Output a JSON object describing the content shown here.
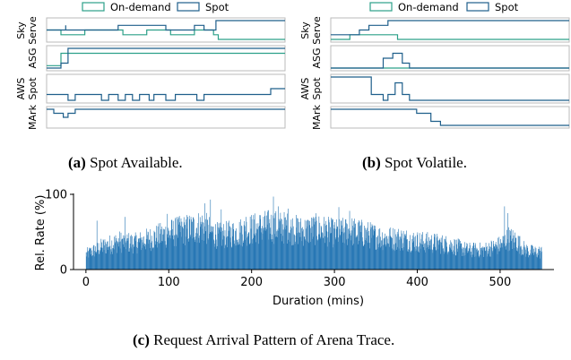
{
  "colors": {
    "on_demand": "#2ca089",
    "spot": "#1f5f8b",
    "bars": "#2978b5"
  },
  "panel_a": {
    "caption_letter": "(a)",
    "caption_text": "Spot Available.",
    "legend": [
      "On-demand",
      "Spot"
    ],
    "row_labels": [
      [
        "Sky",
        "Serve"
      ],
      [
        "ASG"
      ],
      [
        "AWS",
        "Spot"
      ],
      [
        "MArk"
      ]
    ]
  },
  "panel_b": {
    "caption_letter": "(b)",
    "caption_text": "Spot Volatile.",
    "legend": [
      "On-demand",
      "Spot"
    ],
    "row_labels": [
      [
        "Sky",
        "Serve"
      ],
      [
        "ASG"
      ],
      [
        "AWS",
        "Spot"
      ],
      [
        "MArk"
      ]
    ]
  },
  "panel_c": {
    "caption_letter": "(c)",
    "caption_text": "Request Arrival Pattern of Arena Trace."
  },
  "chart_data": [
    {
      "type": "line",
      "title": "Spot Available.",
      "series": [
        {
          "name": "On-demand"
        },
        {
          "name": "Spot"
        }
      ],
      "rows": [
        "SkyServe",
        "ASG",
        "AWS Spot",
        "MArk"
      ],
      "row_traces": {
        "SkyServe": {
          "spot": [
            [
              0,
              2
            ],
            [
              0.08,
              3
            ],
            [
              0.08,
              2
            ],
            [
              0.3,
              3
            ],
            [
              0.3,
              3
            ],
            [
              0.5,
              2
            ],
            [
              0.62,
              3
            ],
            [
              0.66,
              2
            ],
            [
              0.71,
              2
            ],
            [
              0.71,
              4
            ],
            [
              1,
              4
            ]
          ],
          "on_demand": [
            [
              0,
              2
            ],
            [
              0.06,
              1
            ],
            [
              0.16,
              2
            ],
            [
              0.3,
              2
            ],
            [
              0.32,
              1
            ],
            [
              0.42,
              2
            ],
            [
              0.52,
              1
            ],
            [
              0.62,
              2
            ],
            [
              0.7,
              1
            ],
            [
              0.72,
              0
            ],
            [
              1,
              0
            ]
          ]
        },
        "ASG": {
          "spot": [
            [
              0,
              0
            ],
            [
              0.06,
              1
            ],
            [
              0.09,
              4
            ],
            [
              1,
              4
            ]
          ],
          "on_demand": [
            [
              0,
              0.5
            ],
            [
              0.06,
              3
            ],
            [
              1,
              3
            ]
          ]
        },
        "AWS Spot": {
          "spot": [
            [
              0,
              1
            ],
            [
              0.09,
              0
            ],
            [
              0.12,
              1
            ],
            [
              0.2,
              1
            ],
            [
              0.23,
              0
            ],
            [
              0.26,
              1
            ],
            [
              0.3,
              0
            ],
            [
              0.33,
              1
            ],
            [
              0.36,
              0
            ],
            [
              0.39,
              1
            ],
            [
              0.43,
              0
            ],
            [
              0.45,
              1
            ],
            [
              0.5,
              0
            ],
            [
              0.54,
              1
            ],
            [
              0.6,
              1
            ],
            [
              0.63,
              0
            ],
            [
              0.66,
              1
            ],
            [
              0.9,
              1
            ],
            [
              0.94,
              2
            ],
            [
              1,
              2
            ]
          ],
          "on_demand": []
        },
        "MArk": {
          "spot": [
            [
              0,
              4
            ],
            [
              0.03,
              3
            ],
            [
              0.07,
              2
            ],
            [
              0.09,
              3
            ],
            [
              0.12,
              4
            ],
            [
              1,
              4
            ]
          ],
          "on_demand": []
        }
      }
    },
    {
      "type": "line",
      "title": "Spot Volatile.",
      "series": [
        {
          "name": "On-demand"
        },
        {
          "name": "Spot"
        }
      ],
      "rows": [
        "SkyServe",
        "ASG",
        "AWS Spot",
        "MArk"
      ],
      "row_traces": {
        "SkyServe": {
          "spot": [
            [
              0,
              1
            ],
            [
              0.12,
              2
            ],
            [
              0.16,
              3
            ],
            [
              0.24,
              4
            ],
            [
              1,
              4
            ]
          ],
          "on_demand": [
            [
              0,
              0
            ],
            [
              0.08,
              1
            ],
            [
              0.24,
              1
            ],
            [
              0.28,
              0
            ],
            [
              1,
              0
            ]
          ]
        },
        "ASG": {
          "spot": [
            [
              0,
              0
            ],
            [
              0.2,
              0
            ],
            [
              0.22,
              2
            ],
            [
              0.26,
              3
            ],
            [
              0.3,
              1
            ],
            [
              0.33,
              0
            ],
            [
              1,
              0
            ]
          ],
          "on_demand": [
            [
              0,
              0
            ],
            [
              1,
              0
            ]
          ]
        },
        "AWS Spot": {
          "spot": [
            [
              0,
              4
            ],
            [
              0.1,
              4
            ],
            [
              0.17,
              1
            ],
            [
              0.22,
              0
            ],
            [
              0.24,
              1
            ],
            [
              0.27,
              3
            ],
            [
              0.3,
              1
            ],
            [
              0.33,
              0
            ],
            [
              1,
              0
            ]
          ],
          "on_demand": []
        },
        "MArk": {
          "spot": [
            [
              0,
              4
            ],
            [
              0.3,
              4
            ],
            [
              0.36,
              3
            ],
            [
              0.42,
              1
            ],
            [
              0.46,
              0
            ],
            [
              1,
              0
            ]
          ],
          "on_demand": []
        }
      }
    },
    {
      "type": "bar",
      "title": "Request Arrival Pattern of Arena Trace.",
      "xlabel": "Duration (mins)",
      "ylabel": "Rel. Rate (%)",
      "xlim": [
        -15,
        565
      ],
      "ylim": [
        0,
        100
      ],
      "xticks": [
        0,
        100,
        200,
        300,
        400,
        500
      ],
      "yticks": [
        0,
        100
      ],
      "x_range": [
        0,
        550
      ],
      "profile": [
        [
          0,
          22
        ],
        [
          20,
          33
        ],
        [
          40,
          40
        ],
        [
          60,
          38
        ],
        [
          80,
          45
        ],
        [
          100,
          52
        ],
        [
          120,
          57
        ],
        [
          140,
          62
        ],
        [
          160,
          48
        ],
        [
          180,
          52
        ],
        [
          200,
          58
        ],
        [
          220,
          62
        ],
        [
          240,
          60
        ],
        [
          260,
          55
        ],
        [
          280,
          58
        ],
        [
          300,
          52
        ],
        [
          320,
          55
        ],
        [
          340,
          50
        ],
        [
          360,
          45
        ],
        [
          380,
          44
        ],
        [
          400,
          40
        ],
        [
          420,
          38
        ],
        [
          440,
          35
        ],
        [
          460,
          28
        ],
        [
          480,
          28
        ],
        [
          500,
          35
        ],
        [
          510,
          45
        ],
        [
          520,
          40
        ],
        [
          530,
          28
        ],
        [
          540,
          25
        ],
        [
          550,
          25
        ]
      ],
      "peaks": [
        [
          13,
          65
        ],
        [
          47,
          70
        ],
        [
          98,
          74
        ],
        [
          110,
          70
        ],
        [
          143,
          88
        ],
        [
          150,
          93
        ],
        [
          163,
          80
        ],
        [
          193,
          70
        ],
        [
          226,
          97
        ],
        [
          232,
          84
        ],
        [
          244,
          81
        ],
        [
          305,
          83
        ],
        [
          318,
          78
        ],
        [
          505,
          84
        ],
        [
          509,
          75
        ]
      ]
    }
  ]
}
